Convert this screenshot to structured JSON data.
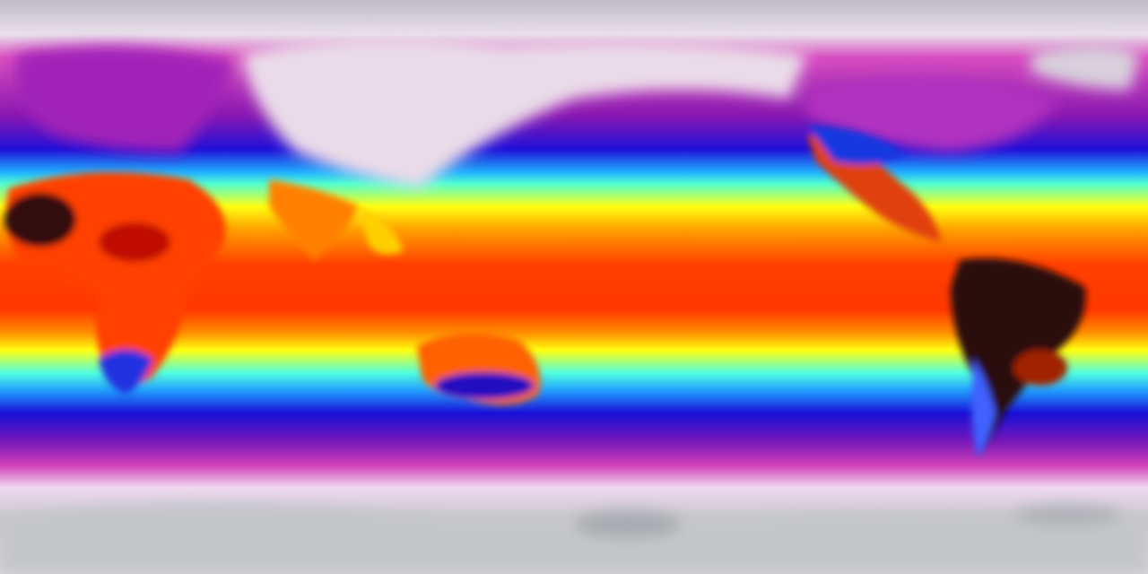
{
  "map": {
    "projection": "equirectangular",
    "colorscale": [
      "#c8c8cc",
      "#f0d8ec",
      "#d020b0",
      "#8a18b0",
      "#1010e0",
      "#20c0ff",
      "#40ffd0",
      "#ffff00",
      "#ffa000",
      "#ff3000",
      "#d00000",
      "#200000"
    ],
    "land_hot_color": "#1a0a0a",
    "ice_color": "#c8c8cc"
  }
}
